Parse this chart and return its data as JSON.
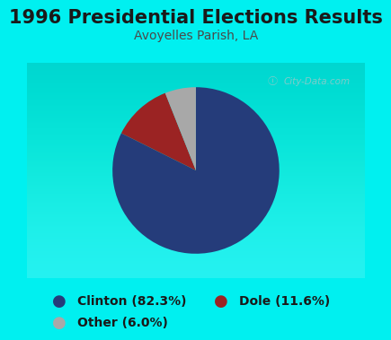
{
  "title": "1996 Presidential Elections Results",
  "subtitle": "Avoyelles Parish, LA",
  "slices": [
    82.3,
    11.6,
    6.0
  ],
  "labels": [
    "Clinton (82.3%)",
    "Dole (11.6%)",
    "Other (6.0%)"
  ],
  "colors": [
    "#253c7a",
    "#9b2323",
    "#a8a8a8"
  ],
  "bg_cyan": "#00f0f0",
  "chart_bg": "#e8f5e8",
  "title_color": "#1a1a1a",
  "subtitle_color": "#4a4a4a",
  "legend_text_color": "#1a1a1a",
  "legend_fontsize": 10,
  "title_fontsize": 15,
  "subtitle_fontsize": 10,
  "startangle": 90,
  "watermark": "City-Data.com"
}
